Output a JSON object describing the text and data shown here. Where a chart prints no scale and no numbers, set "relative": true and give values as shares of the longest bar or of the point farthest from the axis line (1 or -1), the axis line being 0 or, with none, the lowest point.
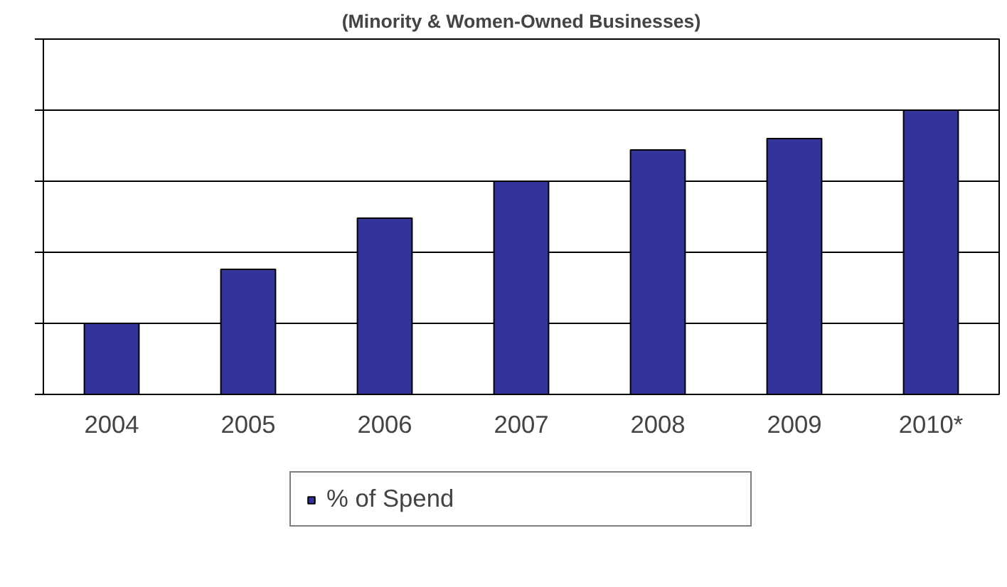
{
  "chart_data": {
    "type": "bar",
    "title": "(Minority & Women-Owned Businesses)",
    "relative": true,
    "categories": [
      "2004",
      "2005",
      "2006",
      "2007",
      "2008",
      "2009",
      "2010*"
    ],
    "series": [
      {
        "name": "% of Spend",
        "color": "#333399",
        "values": [
          0.25,
          0.44,
          0.62,
          0.75,
          0.86,
          0.9,
          1.0
        ]
      }
    ],
    "grid": "y",
    "legend": "bottom"
  }
}
